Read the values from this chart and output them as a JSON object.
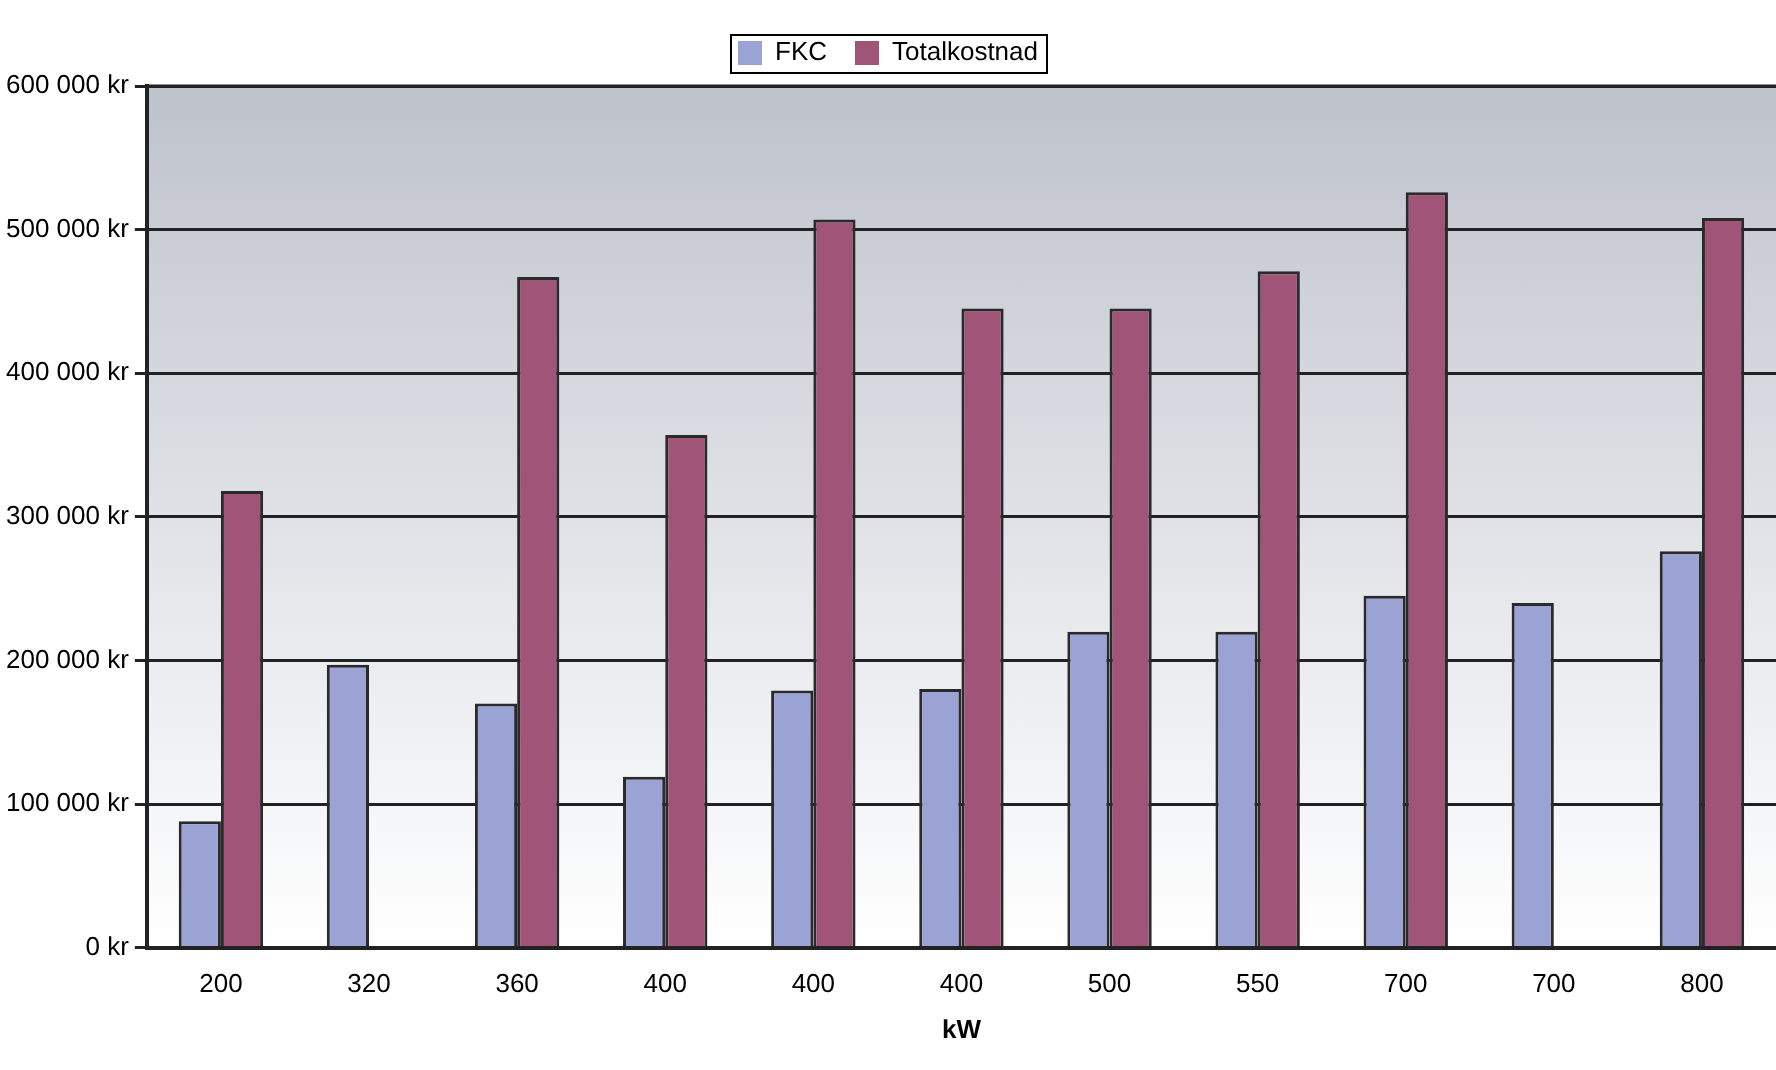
{
  "chart_data": {
    "type": "bar",
    "xlabel": "kW",
    "categories": [
      "200",
      "320",
      "360",
      "400",
      "400",
      "400",
      "500",
      "550",
      "700",
      "700",
      "800"
    ],
    "series": [
      {
        "name": "FKC",
        "color": "#9aa3d3",
        "values": [
          88000,
          197000,
          170000,
          119000,
          179000,
          180000,
          220000,
          220000,
          245000,
          240000,
          276000
        ]
      },
      {
        "name": "Totalkostnad",
        "color": "#a05478",
        "values": [
          318000,
          null,
          467000,
          357000,
          507000,
          445000,
          445000,
          471000,
          526000,
          null,
          508000
        ]
      }
    ],
    "ylim": [
      0,
      600000
    ],
    "yticks": [
      {
        "value": 0,
        "label": "0 kr"
      },
      {
        "value": 100000,
        "label": "100 000 kr"
      },
      {
        "value": 200000,
        "label": "200 000 kr"
      },
      {
        "value": 300000,
        "label": "300 000 kr"
      },
      {
        "value": 400000,
        "label": "400 000 kr"
      },
      {
        "value": 500000,
        "label": "500 000 kr"
      },
      {
        "value": 600000,
        "label": "600 000 kr"
      }
    ],
    "grid": "y",
    "legend": "top"
  }
}
